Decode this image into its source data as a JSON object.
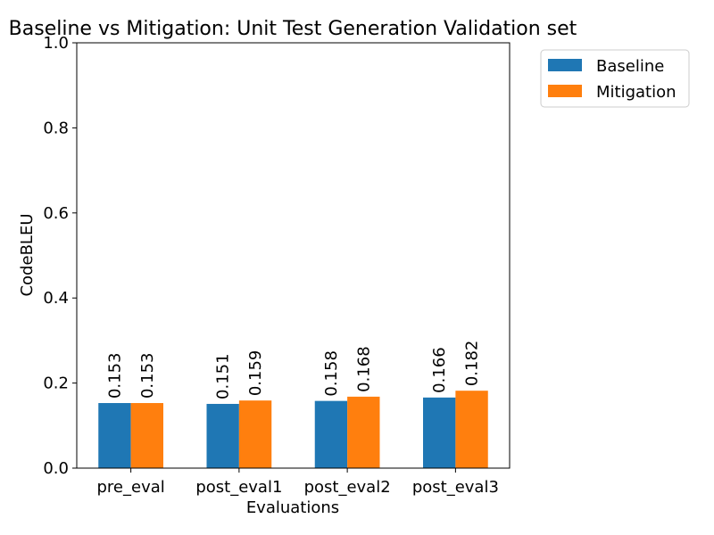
{
  "chart_data": {
    "type": "bar",
    "title": "Baseline vs Mitigation: Unit Test Generation Validation set",
    "xlabel": "Evaluations",
    "ylabel": "CodeBLEU",
    "categories": [
      "pre_eval",
      "post_eval1",
      "post_eval2",
      "post_eval3"
    ],
    "series": [
      {
        "name": "Baseline",
        "values": [
          0.153,
          0.151,
          0.158,
          0.166
        ],
        "labels": [
          "0.153",
          "0.151",
          "0.158",
          "0.166"
        ],
        "color": "#1f77b4"
      },
      {
        "name": "Mitigation",
        "values": [
          0.153,
          0.159,
          0.168,
          0.182
        ],
        "labels": [
          "0.153",
          "0.159",
          "0.168",
          "0.182"
        ],
        "color": "#ff7f0e"
      }
    ],
    "ylim": [
      0,
      1.0
    ],
    "yticks": [
      0.0,
      0.2,
      0.4,
      0.6,
      0.8,
      1.0
    ],
    "ytick_labels": [
      "0.0",
      "0.2",
      "0.4",
      "0.6",
      "0.8",
      "1.0"
    ],
    "grid": false,
    "legend_position": "outside-top-right"
  }
}
